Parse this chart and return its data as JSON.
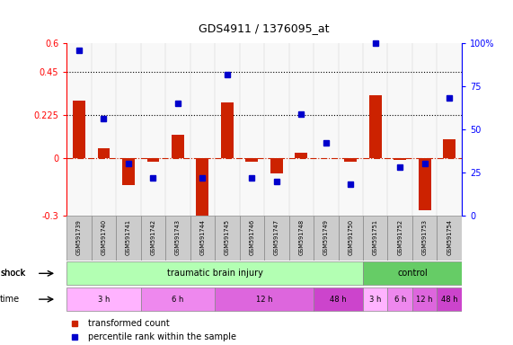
{
  "title": "GDS4911 / 1376095_at",
  "samples": [
    "GSM591739",
    "GSM591740",
    "GSM591741",
    "GSM591742",
    "GSM591743",
    "GSM591744",
    "GSM591745",
    "GSM591746",
    "GSM591747",
    "GSM591748",
    "GSM591749",
    "GSM591750",
    "GSM591751",
    "GSM591752",
    "GSM591753",
    "GSM591754"
  ],
  "red_values": [
    0.3,
    0.05,
    -0.14,
    -0.02,
    0.12,
    -0.3,
    0.29,
    -0.02,
    -0.08,
    0.03,
    0.0,
    -0.02,
    0.33,
    -0.01,
    -0.27,
    0.1
  ],
  "blue_percentiles": [
    96,
    56,
    30,
    22,
    65,
    22,
    82,
    22,
    20,
    59,
    42,
    18,
    100,
    28,
    30,
    68
  ],
  "ylim_left": [
    -0.3,
    0.6
  ],
  "ylim_right": [
    0,
    100
  ],
  "yticks_left": [
    -0.3,
    0.0,
    0.225,
    0.45,
    0.6
  ],
  "yticks_right": [
    0,
    25,
    50,
    75,
    100
  ],
  "hlines": [
    0.225,
    0.45
  ],
  "shock_groups": [
    {
      "label": "traumatic brain injury",
      "start": 0,
      "end": 12,
      "color": "#b3ffb3"
    },
    {
      "label": "control",
      "start": 12,
      "end": 16,
      "color": "#66cc66"
    }
  ],
  "time_groups": [
    {
      "label": "3 h",
      "start": 0,
      "end": 3,
      "color": "#ffb3ff"
    },
    {
      "label": "6 h",
      "start": 3,
      "end": 6,
      "color": "#ee88ee"
    },
    {
      "label": "12 h",
      "start": 6,
      "end": 10,
      "color": "#dd66dd"
    },
    {
      "label": "48 h",
      "start": 10,
      "end": 12,
      "color": "#cc44cc"
    },
    {
      "label": "3 h",
      "start": 12,
      "end": 13,
      "color": "#ffb3ff"
    },
    {
      "label": "6 h",
      "start": 13,
      "end": 14,
      "color": "#ee88ee"
    },
    {
      "label": "12 h",
      "start": 14,
      "end": 15,
      "color": "#dd66dd"
    },
    {
      "label": "48 h",
      "start": 15,
      "end": 16,
      "color": "#cc44cc"
    }
  ],
  "bar_color": "#cc2200",
  "dot_color": "#0000cc",
  "zero_line_color": "#cc2200",
  "background_color": "#ffffff",
  "legend_red": "transformed count",
  "legend_blue": "percentile rank within the sample",
  "n_samples": 16
}
